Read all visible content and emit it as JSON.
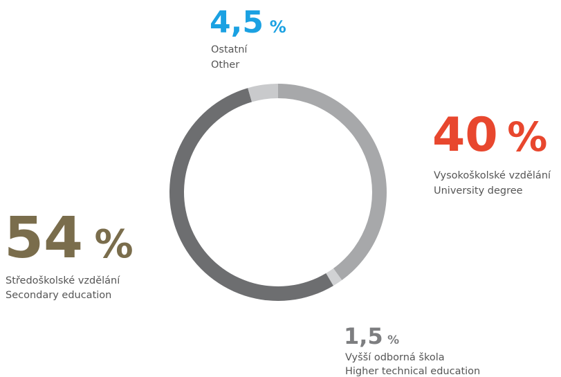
{
  "chart_data": {
    "type": "donut",
    "categories": [
      "University degree",
      "Higher technical education",
      "Secondary education",
      "Other"
    ],
    "categories_cs": [
      "Vysokoškolské vzdělání",
      "Vyšší odborná škola",
      "Středoškolské vzdělání",
      "Ostatní"
    ],
    "values": [
      40,
      1.5,
      54,
      4.5
    ],
    "value_labels": [
      "40",
      "1,5",
      "54",
      "4,5"
    ],
    "unit": "%",
    "colors": [
      "#a7a8aa",
      "#d1d2d4",
      "#6d6e70",
      "#c9cacc"
    ],
    "label_colors": [
      "#e8472e",
      "#7d7e80",
      "#7a6d4c",
      "#1ba1e2"
    ]
  }
}
